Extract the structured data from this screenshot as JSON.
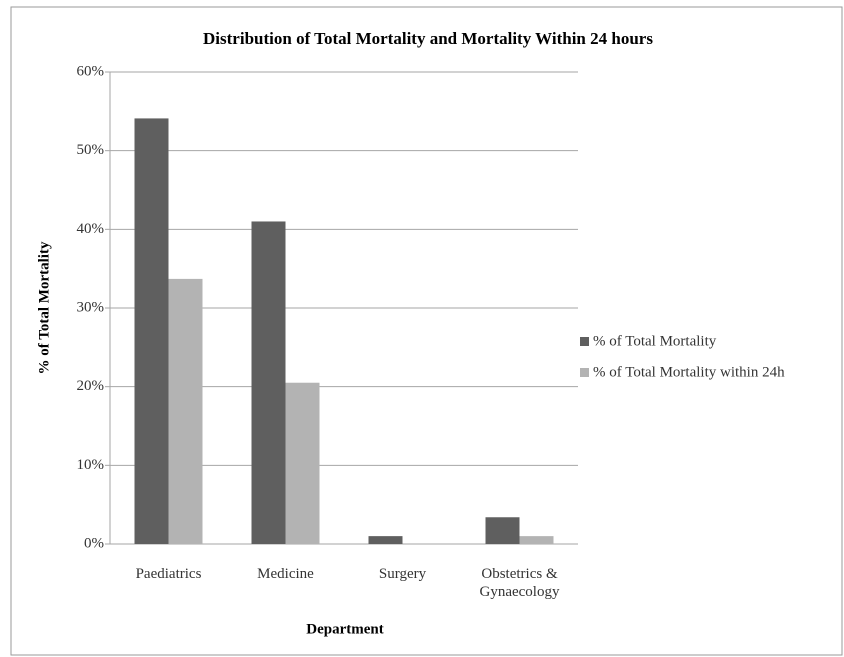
{
  "chart_data": {
    "type": "bar",
    "title": "Distribution of  Total Mortality and Mortality Within 24 hours",
    "x_label": "Department",
    "y_label": "% of Total Mortality",
    "categories": [
      "Paediatrics",
      "Medicine",
      "Surgery",
      "Obstetrics & Gynaecology"
    ],
    "series": [
      {
        "name": "% of Total Mortality",
        "color": "#5f5f5f",
        "values": [
          54.1,
          41.0,
          1.0,
          3.4
        ]
      },
      {
        "name": "% of Total Mortality within 24h",
        "color": "#b3b3b3",
        "values": [
          33.7,
          20.5,
          0,
          1.0
        ]
      }
    ],
    "ylim": [
      0,
      60
    ],
    "yticks": [
      {
        "value": 0,
        "label": "0%"
      },
      {
        "value": 10,
        "label": "10%"
      },
      {
        "value": 20,
        "label": "20%"
      },
      {
        "value": 30,
        "label": "30%"
      },
      {
        "value": 40,
        "label": "40%"
      },
      {
        "value": 50,
        "label": "50%"
      },
      {
        "value": 60,
        "label": "60%"
      }
    ],
    "grid": true,
    "legend": "right"
  }
}
